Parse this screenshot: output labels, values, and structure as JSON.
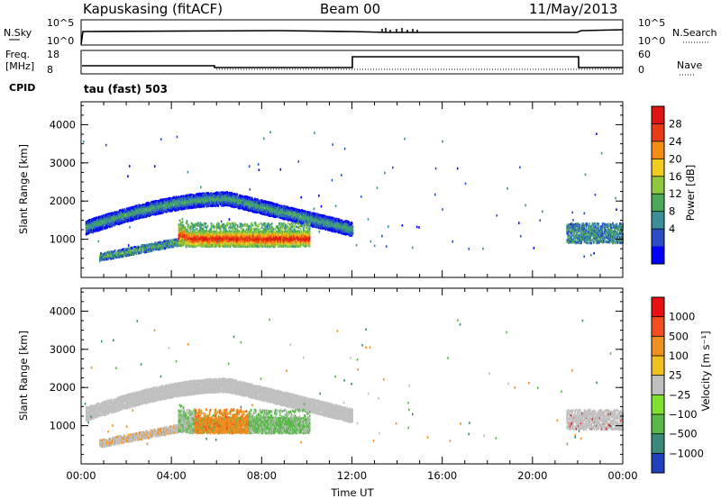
{
  "header": {
    "station": "Kapuskasing (fitACF)",
    "beam": "Beam 00",
    "date": "11/May/2013"
  },
  "top_panels": {
    "nsky": {
      "label": "N.Sky",
      "ticks": [
        "10^5",
        "10^0"
      ]
    },
    "nsearch": {
      "label": "N.Search",
      "ticks": [
        "10^5",
        "10^0"
      ]
    },
    "freq": {
      "label_line1": "Freq.",
      "label_line2": "[MHz]",
      "ticks": [
        "18",
        "8"
      ]
    },
    "nave": {
      "label": "Nave",
      "ticks": [
        "60",
        "0"
      ]
    },
    "cpid": {
      "label": "CPID",
      "value": "tau (fast) 503"
    }
  },
  "power_colorbar": {
    "title": "Power [dB]",
    "ticks": [
      "28",
      "24",
      "20",
      "16",
      "12",
      "8",
      "4"
    ]
  },
  "velocity_colorbar": {
    "title": "Velocity [m s⁻¹]",
    "ticks": [
      "1000",
      "500",
      "100",
      "25",
      "−25",
      "−100",
      "−500",
      "−1000"
    ]
  },
  "colors": {
    "power": [
      "#0000ff",
      "#2a4cc4",
      "#3a8f98",
      "#4aaa58",
      "#8ec83c",
      "#f0cc1e",
      "#f58c14",
      "#e83c14",
      "#dc1414"
    ],
    "velocity": [
      "#2040c0",
      "#3a8a7a",
      "#58b848",
      "#80e030",
      "#c0c0c0",
      "#f0c020",
      "#f09020",
      "#f05020",
      "#e81010"
    ]
  },
  "chart_data": [
    {
      "type": "heatmap",
      "name": "power_panel",
      "ylabel": "Slant Range [km]",
      "yticks": [
        1000,
        2000,
        3000,
        4000
      ],
      "ylim": [
        0,
        4600
      ],
      "xlim_hours": [
        0,
        24
      ],
      "features": [
        {
          "kind": "arc",
          "t0": 0.2,
          "t1": 12.0,
          "r0": 1300,
          "peak": 2050,
          "tpeak": 6.5,
          "r1": 1250,
          "width": 160,
          "level": 2
        },
        {
          "kind": "band",
          "t0": 0.8,
          "t1": 5.0,
          "r0": 520,
          "r1": 1000,
          "width": 110,
          "level": 3
        },
        {
          "kind": "blob",
          "t0": 4.3,
          "t1": 10.1,
          "rc": 1000,
          "width": 170,
          "level": 7
        },
        {
          "kind": "patch",
          "t0": 21.5,
          "t1": 24.0,
          "rc": 1150,
          "width": 260,
          "level": 2
        }
      ]
    },
    {
      "type": "heatmap",
      "name": "velocity_panel",
      "ylabel": "Slant Range [km]",
      "yticks": [
        1000,
        2000,
        3000,
        4000
      ],
      "ylim": [
        0,
        4600
      ],
      "xlim_hours": [
        0,
        24
      ],
      "xticks": [
        "00:00",
        "04:00",
        "08:00",
        "12:00",
        "16:00",
        "20:00",
        "00:00"
      ],
      "xlabel": "Time UT"
    }
  ]
}
